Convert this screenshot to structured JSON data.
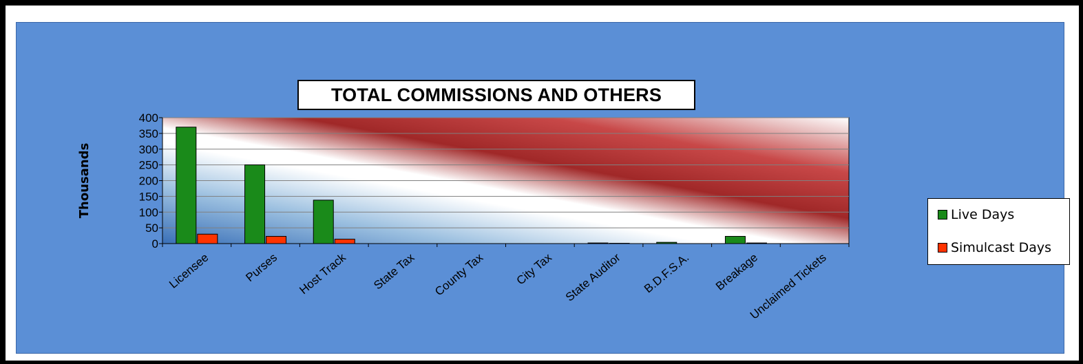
{
  "chart_data": {
    "type": "bar",
    "title": "TOTAL COMMISSIONS AND OTHERS",
    "ylabel": "Thousands",
    "xlabel": "",
    "ylim": [
      0,
      400
    ],
    "yticks": [
      0,
      50,
      100,
      150,
      200,
      250,
      300,
      350,
      400
    ],
    "grid": true,
    "legend_position": "right",
    "categories": [
      "Licensee",
      "Purses",
      "Host Track",
      "State Tax",
      "County Tax",
      "City Tax",
      "State Auditor",
      "B.D.F.S.A.",
      "Breakage",
      "Unclaimed Tickets"
    ],
    "series": [
      {
        "name": "Live Days",
        "color": "#1a8a1a",
        "values": [
          370,
          250,
          138,
          0,
          0,
          0,
          2,
          4,
          23,
          0
        ]
      },
      {
        "name": "Simulcast Days",
        "color": "#ff3300",
        "values": [
          30,
          23,
          14,
          0,
          0,
          0,
          1,
          0,
          2,
          0
        ]
      }
    ]
  }
}
